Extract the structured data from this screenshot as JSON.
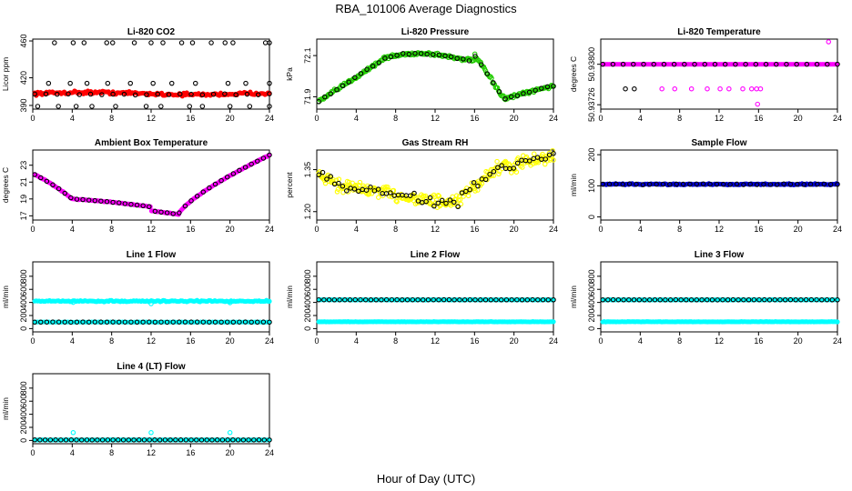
{
  "figure": {
    "title": "RBA_101006  Average Diagnostics",
    "xlabel": "Hour of Day (UTC)"
  },
  "chart_data": [
    {
      "id": "co2",
      "type": "scatter",
      "title": "Li-820 CO2",
      "ylabel": "Licor ppm",
      "xlim": [
        0,
        24
      ],
      "ylim": [
        386,
        462
      ],
      "xticks": [
        "0",
        "4",
        "8",
        "12",
        "16",
        "20",
        "24"
      ],
      "yticks": [
        {
          "v": 390,
          "label": "390"
        },
        {
          "v": 420,
          "label": "420"
        },
        {
          "v": 460,
          "label": "460"
        }
      ],
      "series": [
        {
          "name": "all",
          "color": "#ff0000",
          "marker": "dot",
          "gen": {
            "n": 160,
            "base": 403,
            "shape": "flat",
            "amp": 1.2,
            "noise": 2.5
          }
        },
        {
          "name": "avg",
          "color": "#000000",
          "marker": "ring",
          "gen": {
            "n": 22,
            "base": 402,
            "shape": "flat",
            "amp": 0,
            "noise": 1
          }
        },
        {
          "name": "upper-outliers",
          "color": "#000000",
          "marker": "ring",
          "x": [
            2.2,
            4.1,
            5.2,
            7.5,
            8.1,
            10.3,
            12.0,
            13.2,
            15.1,
            16.2,
            18.1,
            19.5,
            20.3,
            23.6,
            24.0
          ],
          "y": [
            458,
            458,
            458,
            458,
            458,
            458,
            458,
            458,
            458,
            458,
            458,
            458,
            458,
            458,
            458
          ]
        },
        {
          "name": "mid-outliers",
          "color": "#000000",
          "marker": "ring",
          "x": [
            1.6,
            3.8,
            5.5,
            7.6,
            9.9,
            12.2,
            14.1,
            16.5,
            19.8,
            21.6,
            24.0
          ],
          "y": [
            414,
            414,
            414,
            414,
            414,
            414,
            414,
            414,
            414,
            414,
            414
          ]
        },
        {
          "name": "low-outliers",
          "color": "#000000",
          "marker": "ring",
          "x": [
            0.5,
            2.6,
            4.4,
            6.0,
            8.4,
            11.5,
            13.0,
            15.9,
            17.2,
            20.0,
            22.0,
            24.0
          ],
          "y": [
            389,
            389,
            389,
            389,
            389,
            389,
            389,
            389,
            389,
            389,
            389,
            389
          ]
        }
      ]
    },
    {
      "id": "pressure",
      "type": "scatter",
      "title": "Li-820 Pressure",
      "ylabel": "kPa",
      "xlim": [
        0,
        24
      ],
      "ylim": [
        71.84,
        72.18
      ],
      "xticks": [
        "0",
        "4",
        "8",
        "12",
        "16",
        "20",
        "24"
      ],
      "yticks": [
        {
          "v": 71.9,
          "label": "71.9"
        },
        {
          "v": 72.1,
          "label": "72.1"
        }
      ],
      "series": [
        {
          "name": "all",
          "color": "#22cc00",
          "marker": "ring",
          "gen": {
            "n": 240,
            "base": 72.0,
            "shape": "pressure",
            "amp": 0.13,
            "noise": 0.012
          }
        },
        {
          "name": "avg",
          "color": "#000000",
          "marker": "ring",
          "gen": {
            "n": 40,
            "base": 72.0,
            "shape": "pressure",
            "amp": 0.13,
            "noise": 0.006
          }
        }
      ]
    },
    {
      "id": "licor-temp",
      "type": "scatter",
      "title": "Li-820 Temperature",
      "ylabel": "degrees C",
      "xlim": [
        0,
        24
      ],
      "ylim": [
        50.93718,
        50.93846
      ],
      "xticks": [
        "0",
        "4",
        "8",
        "12",
        "16",
        "20",
        "24"
      ],
      "yticks": [
        {
          "v": 50.93726,
          "label": "50.93726"
        },
        {
          "v": 50.938,
          "label": "50.93800"
        }
      ],
      "series": [
        {
          "name": "main",
          "color": "#ff00ff",
          "marker": "dot",
          "gen": {
            "n": 140,
            "base": 50.938,
            "shape": "flat",
            "amp": 0,
            "noise": 0
          }
        },
        {
          "name": "avg",
          "color": "#000000",
          "marker": "ring",
          "gen": {
            "n": 24,
            "base": 50.938,
            "shape": "flat",
            "amp": 0,
            "noise": 0
          }
        },
        {
          "name": "low-magenta",
          "color": "#ff00ff",
          "marker": "ring",
          "x": [
            6.2,
            7.5,
            9.2,
            10.8,
            12.1,
            13.0,
            14.4,
            15.3,
            15.8,
            16.2
          ],
          "y": [
            50.93755,
            50.93755,
            50.93755,
            50.93755,
            50.93755,
            50.93755,
            50.93755,
            50.93755,
            50.93755,
            50.93755
          ]
        },
        {
          "name": "low-black",
          "color": "#000000",
          "marker": "ring",
          "x": [
            2.5,
            3.4
          ],
          "y": [
            50.93755,
            50.93755
          ]
        },
        {
          "name": "extreme",
          "color": "#ff00ff",
          "marker": "ring",
          "x": [
            23.1,
            15.9
          ],
          "y": [
            50.93841,
            50.93727
          ]
        }
      ]
    },
    {
      "id": "ambient",
      "type": "scatter",
      "title": "Ambient Box Temperature",
      "ylabel": "degrees C",
      "xlim": [
        0,
        24
      ],
      "ylim": [
        16.5,
        24.8
      ],
      "xticks": [
        "0",
        "4",
        "8",
        "12",
        "16",
        "20",
        "24"
      ],
      "yticks": [
        {
          "v": 17,
          "label": "17"
        },
        {
          "v": 19,
          "label": "19"
        },
        {
          "v": 21,
          "label": "21"
        },
        {
          "v": 23,
          "label": "23"
        }
      ],
      "series": [
        {
          "name": "all",
          "color": "#ff00ff",
          "marker": "dot",
          "gen": {
            "n": 200,
            "base": 0,
            "shape": "ambient",
            "amp": 0,
            "noise": 0.06
          }
        },
        {
          "name": "avg",
          "color": "#000000",
          "marker": "ring",
          "gen": {
            "n": 40,
            "base": 0,
            "shape": "ambient",
            "amp": 0,
            "noise": 0.03
          }
        }
      ]
    },
    {
      "id": "rh",
      "type": "scatter",
      "title": "Gas Stream RH",
      "ylabel": "percent",
      "xlim": [
        0,
        24
      ],
      "ylim": [
        1.17,
        1.42
      ],
      "xticks": [
        "0",
        "4",
        "8",
        "12",
        "16",
        "20",
        "24"
      ],
      "yticks": [
        {
          "v": 1.2,
          "label": "1.20"
        },
        {
          "v": 1.35,
          "label": "1.35"
        }
      ],
      "series": [
        {
          "name": "all",
          "color": "#ffff00",
          "marker": "ring",
          "gen": {
            "n": 280,
            "base": 0,
            "shape": "rh",
            "amp": 0,
            "noise": 0.035
          }
        },
        {
          "name": "avg",
          "color": "#000000",
          "marker": "ring",
          "gen": {
            "n": 60,
            "base": 0,
            "shape": "rh",
            "amp": 0,
            "noise": 0.025
          }
        }
      ]
    },
    {
      "id": "sample-flow",
      "type": "scatter",
      "title": "Sample Flow",
      "ylabel": "ml/min",
      "xlim": [
        0,
        24
      ],
      "ylim": [
        -10,
        215
      ],
      "xticks": [
        "0",
        "4",
        "8",
        "12",
        "16",
        "20",
        "24"
      ],
      "yticks": [
        {
          "v": 0,
          "label": "0"
        },
        {
          "v": 100,
          "label": "100"
        },
        {
          "v": 200,
          "label": "200"
        }
      ],
      "series": [
        {
          "name": "all",
          "color": "#0000cc",
          "marker": "dot",
          "gen": {
            "n": 200,
            "base": 105,
            "shape": "flat",
            "amp": 0,
            "noise": 3
          }
        },
        {
          "name": "avg",
          "color": "#000000",
          "marker": "ring",
          "gen": {
            "n": 36,
            "base": 105,
            "shape": "flat",
            "amp": 0,
            "noise": 2
          }
        }
      ]
    },
    {
      "id": "line1",
      "type": "scatter",
      "title": "Line 1 Flow",
      "ylabel": "ml/min",
      "xlim": [
        0,
        24
      ],
      "ylim": [
        -50,
        1020
      ],
      "xticks": [
        "0",
        "4",
        "8",
        "12",
        "16",
        "20",
        "24"
      ],
      "yticks": [
        {
          "v": 0,
          "label": "0"
        },
        {
          "v": 200,
          "label": "200"
        },
        {
          "v": 400,
          "label": "400"
        },
        {
          "v": 600,
          "label": "600"
        },
        {
          "v": 800,
          "label": "800"
        }
      ],
      "series": [
        {
          "name": "upper",
          "color": "#00ffff",
          "marker": "dot",
          "gen": {
            "n": 160,
            "base": 420,
            "shape": "flat",
            "amp": 0,
            "noise": 15
          }
        },
        {
          "name": "lower",
          "color": "#00ffff",
          "marker": "dot",
          "gen": {
            "n": 100,
            "base": 100,
            "shape": "flat",
            "amp": 0,
            "noise": 4
          }
        },
        {
          "name": "avg",
          "color": "#000000",
          "marker": "ring",
          "gen": {
            "n": 40,
            "base": 100,
            "shape": "flat",
            "amp": 0,
            "noise": 2
          }
        },
        {
          "name": "cyan-rings",
          "color": "#00ffff",
          "marker": "ring",
          "x": [
            4.1,
            12.0,
            20.0
          ],
          "y": [
            400,
            380,
            395
          ]
        }
      ]
    },
    {
      "id": "line2",
      "type": "scatter",
      "title": "Line 2 Flow",
      "ylabel": "ml/min",
      "xlim": [
        0,
        24
      ],
      "ylim": [
        -50,
        1020
      ],
      "xticks": [
        "0",
        "4",
        "8",
        "12",
        "16",
        "20",
        "24"
      ],
      "yticks": [
        {
          "v": 0,
          "label": "0"
        },
        {
          "v": 200,
          "label": "200"
        },
        {
          "v": 400,
          "label": "400"
        },
        {
          "v": 600,
          "label": "600"
        },
        {
          "v": 800,
          "label": "800"
        }
      ],
      "series": [
        {
          "name": "upper",
          "color": "#00ffff",
          "marker": "dot",
          "gen": {
            "n": 160,
            "base": 440,
            "shape": "flat",
            "amp": 0,
            "noise": 4
          }
        },
        {
          "name": "lower",
          "color": "#00ffff",
          "marker": "dot",
          "gen": {
            "n": 160,
            "base": 105,
            "shape": "flat",
            "amp": 0,
            "noise": 4
          }
        },
        {
          "name": "avg",
          "color": "#000000",
          "marker": "ring",
          "gen": {
            "n": 46,
            "base": 440,
            "shape": "flat",
            "amp": 0,
            "noise": 2
          }
        }
      ]
    },
    {
      "id": "line3",
      "type": "scatter",
      "title": "Line 3 Flow",
      "ylabel": "ml/min",
      "xlim": [
        0,
        24
      ],
      "ylim": [
        -50,
        1020
      ],
      "xticks": [
        "0",
        "4",
        "8",
        "12",
        "16",
        "20",
        "24"
      ],
      "yticks": [
        {
          "v": 0,
          "label": "0"
        },
        {
          "v": 200,
          "label": "200"
        },
        {
          "v": 400,
          "label": "400"
        },
        {
          "v": 600,
          "label": "600"
        },
        {
          "v": 800,
          "label": "800"
        }
      ],
      "series": [
        {
          "name": "upper",
          "color": "#00ffff",
          "marker": "dot",
          "gen": {
            "n": 160,
            "base": 440,
            "shape": "flat",
            "amp": 0,
            "noise": 4
          }
        },
        {
          "name": "lower",
          "color": "#00ffff",
          "marker": "dot",
          "gen": {
            "n": 160,
            "base": 105,
            "shape": "flat",
            "amp": 0,
            "noise": 4
          }
        },
        {
          "name": "avg",
          "color": "#000000",
          "marker": "ring",
          "gen": {
            "n": 46,
            "base": 440,
            "shape": "flat",
            "amp": 0,
            "noise": 2
          }
        }
      ]
    },
    {
      "id": "line4",
      "type": "scatter",
      "title": "Line 4 (LT) Flow",
      "ylabel": "ml/min",
      "xlim": [
        0,
        24
      ],
      "ylim": [
        -50,
        1020
      ],
      "xticks": [
        "0",
        "4",
        "8",
        "12",
        "16",
        "20",
        "24"
      ],
      "yticks": [
        {
          "v": 0,
          "label": "0"
        },
        {
          "v": 200,
          "label": "200"
        },
        {
          "v": 400,
          "label": "400"
        },
        {
          "v": 600,
          "label": "600"
        },
        {
          "v": 800,
          "label": "800"
        }
      ],
      "series": [
        {
          "name": "all",
          "color": "#00ffff",
          "marker": "dot",
          "gen": {
            "n": 160,
            "base": 8,
            "shape": "flat",
            "amp": 0,
            "noise": 2
          }
        },
        {
          "name": "avg",
          "color": "#000000",
          "marker": "ring",
          "gen": {
            "n": 46,
            "base": 8,
            "shape": "flat",
            "amp": 0,
            "noise": 1
          }
        },
        {
          "name": "spikes",
          "color": "#00ffff",
          "marker": "ring",
          "x": [
            4.1,
            12.0,
            20.0
          ],
          "y": [
            120,
            120,
            120
          ]
        }
      ]
    }
  ]
}
